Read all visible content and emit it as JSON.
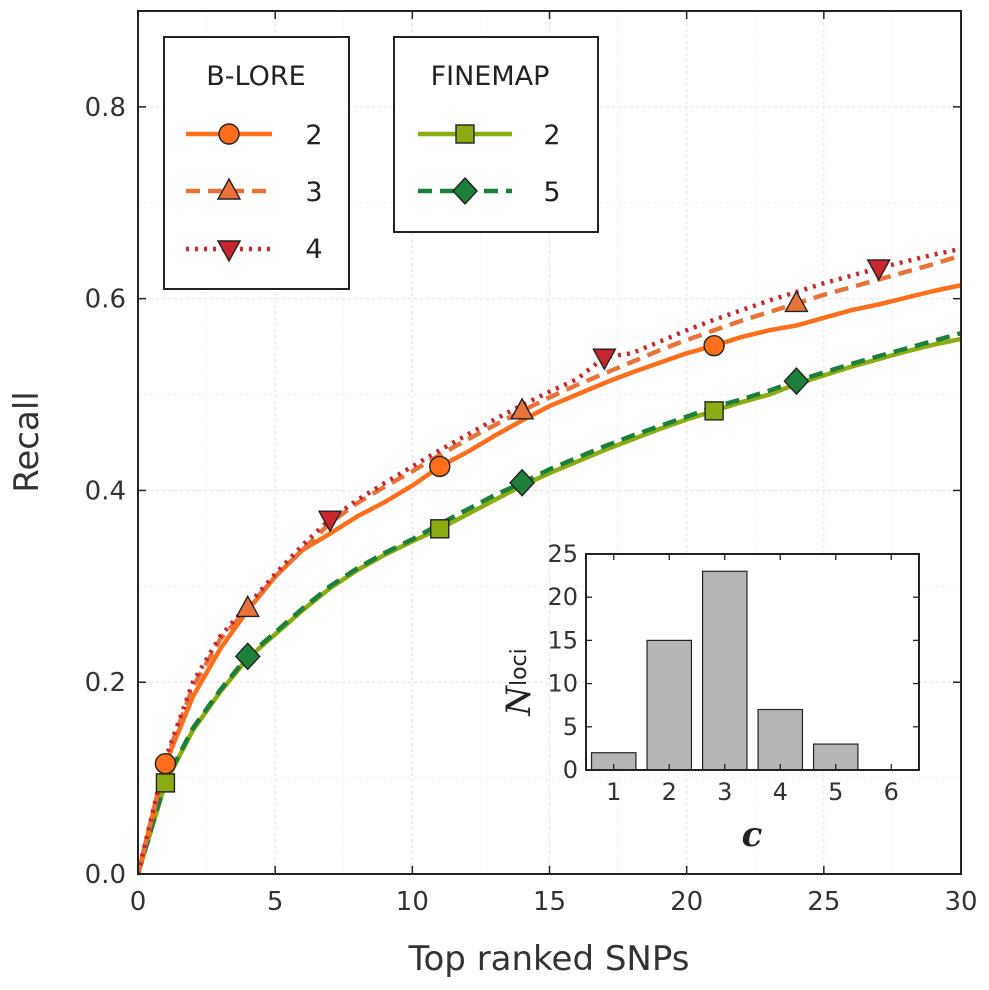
{
  "chart_data": [
    {
      "type": "line",
      "title": "",
      "xlabel": "Top ranked SNPs",
      "ylabel": "Recall",
      "xlim": [
        0,
        30
      ],
      "ylim": [
        0,
        0.9
      ],
      "xticks": [
        0,
        5,
        10,
        15,
        20,
        25,
        30
      ],
      "xtick_labels": [
        "0",
        "5",
        "10",
        "15",
        "20",
        "25",
        "30"
      ],
      "yticks": [
        0.0,
        0.2,
        0.4,
        0.6,
        0.8
      ],
      "ytick_labels": [
        "0.0",
        "0.2",
        "0.4",
        "0.6",
        "0.8"
      ],
      "grid": true,
      "legends": [
        {
          "title": "B-LORE",
          "entries": [
            "2",
            "3",
            "4"
          ],
          "placement": "top-left"
        },
        {
          "title": "FINEMAP",
          "entries": [
            "2",
            "5"
          ],
          "placement": "top-center"
        }
      ],
      "x": [
        0,
        1,
        2,
        3,
        4,
        5,
        6,
        7,
        8,
        9,
        10,
        11,
        12,
        13,
        14,
        15,
        16,
        17,
        18,
        19,
        20,
        21,
        22,
        23,
        24,
        25,
        26,
        27,
        28,
        29,
        30
      ],
      "series": [
        {
          "group": "B-LORE",
          "name": "2",
          "color": "#ff6e1a",
          "dash": "solid",
          "marker": "circle",
          "marker_x": [
            1,
            11,
            21
          ],
          "values": [
            0.0,
            0.115,
            0.185,
            0.235,
            0.275,
            0.31,
            0.338,
            0.355,
            0.373,
            0.388,
            0.405,
            0.425,
            0.44,
            0.457,
            0.473,
            0.488,
            0.5,
            0.512,
            0.523,
            0.533,
            0.543,
            0.551,
            0.56,
            0.567,
            0.572,
            0.58,
            0.588,
            0.594,
            0.601,
            0.608,
            0.614
          ]
        },
        {
          "group": "B-LORE",
          "name": "3",
          "color": "#e8733a",
          "dash": "dashed",
          "marker": "triangle-up",
          "marker_x": [
            4,
            14,
            24
          ],
          "values": [
            0.0,
            0.118,
            0.195,
            0.245,
            0.277,
            0.31,
            0.338,
            0.366,
            0.387,
            0.404,
            0.42,
            0.437,
            0.453,
            0.468,
            0.483,
            0.497,
            0.51,
            0.522,
            0.534,
            0.546,
            0.557,
            0.567,
            0.577,
            0.586,
            0.595,
            0.604,
            0.612,
            0.62,
            0.628,
            0.636,
            0.645
          ]
        },
        {
          "group": "B-LORE",
          "name": "4",
          "color": "#c8272e",
          "dash": "dotted",
          "marker": "triangle-down",
          "marker_x": [
            7,
            17,
            27
          ],
          "values": [
            0.0,
            0.12,
            0.2,
            0.248,
            0.28,
            0.313,
            0.343,
            0.37,
            0.39,
            0.408,
            0.425,
            0.442,
            0.458,
            0.474,
            0.489,
            0.503,
            0.516,
            0.539,
            0.543,
            0.555,
            0.567,
            0.578,
            0.588,
            0.598,
            0.607,
            0.616,
            0.624,
            0.632,
            0.639,
            0.646,
            0.652
          ]
        },
        {
          "group": "FINEMAP",
          "name": "2",
          "color": "#8aab12",
          "dash": "solid",
          "marker": "square",
          "marker_x": [
            1,
            11,
            21
          ],
          "values": [
            0.0,
            0.095,
            0.15,
            0.19,
            0.225,
            0.25,
            0.275,
            0.298,
            0.317,
            0.333,
            0.347,
            0.36,
            0.375,
            0.39,
            0.405,
            0.418,
            0.43,
            0.442,
            0.453,
            0.464,
            0.474,
            0.483,
            0.492,
            0.5,
            0.511,
            0.52,
            0.529,
            0.537,
            0.545,
            0.552,
            0.558
          ]
        },
        {
          "group": "FINEMAP",
          "name": "5",
          "color": "#1d7f3a",
          "dash": "dashed",
          "marker": "diamond",
          "marker_x": [
            4,
            14,
            24
          ],
          "values": [
            0.0,
            0.097,
            0.152,
            0.192,
            0.227,
            0.252,
            0.277,
            0.3,
            0.319,
            0.335,
            0.349,
            0.365,
            0.38,
            0.395,
            0.408,
            0.422,
            0.434,
            0.446,
            0.457,
            0.467,
            0.477,
            0.487,
            0.495,
            0.504,
            0.514,
            0.523,
            0.532,
            0.54,
            0.548,
            0.556,
            0.564
          ]
        }
      ]
    },
    {
      "type": "bar",
      "title": "",
      "xlabel": "c",
      "ylabel_main": "N",
      "ylabel_sub": "loci",
      "categories": [
        "1",
        "2",
        "3",
        "4",
        "5",
        "6"
      ],
      "values": [
        2,
        15,
        23,
        7,
        3,
        0
      ],
      "ylim": [
        0,
        25
      ],
      "yticks": [
        0,
        5,
        10,
        15,
        20,
        25
      ],
      "ytick_labels": [
        "0",
        "5",
        "10",
        "15",
        "20",
        "25"
      ],
      "color": "#b3b6b5",
      "grid": false
    }
  ]
}
